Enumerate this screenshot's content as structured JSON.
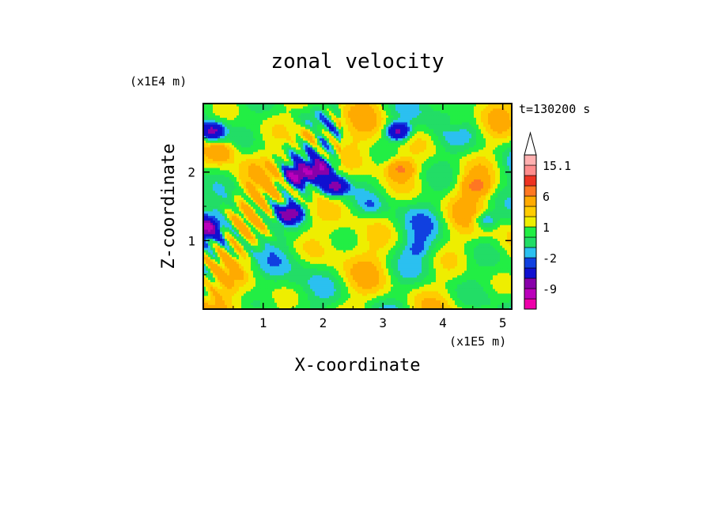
{
  "chart_data": {
    "type": "heatmap",
    "title": "zonal velocity",
    "xlabel": "X-coordinate",
    "ylabel": "Z-coordinate",
    "x_unit": "(x1E5 m)",
    "y_unit": "(x1E4 m)",
    "time_label": "t=130200 s",
    "xlim": [
      0,
      5.15
    ],
    "ylim": [
      0,
      3.0
    ],
    "x_ticks": [
      1,
      2,
      3,
      4,
      5
    ],
    "y_ticks": [
      1,
      2
    ],
    "colorbar": {
      "levels": [
        -15,
        -12,
        -9,
        -6,
        -3,
        -2,
        -1,
        0,
        1,
        2,
        3,
        6,
        9,
        12,
        15.1
      ],
      "tick_labels": [
        "15.1",
        "6",
        "1",
        "-2",
        "-9"
      ],
      "tick_values": [
        15.1,
        6,
        1,
        -2,
        -9
      ],
      "colors": [
        "#ee00aa",
        "#bb00bb",
        "#8800aa",
        "#1010d0",
        "#1040e0",
        "#2bc0f0",
        "#22dd66",
        "#22ee44",
        "#eeee00",
        "#ffcc00",
        "#ffaa00",
        "#ff7722",
        "#ee3322",
        "#ff8c8c",
        "#ffb0b0"
      ],
      "extend_top": true
    },
    "features": [
      {
        "x": 3.25,
        "z": 2.6,
        "u": -8
      },
      {
        "x": 3.3,
        "z": 2.05,
        "u": 5
      },
      {
        "x": 1.55,
        "z": 1.95,
        "u": -9
      },
      {
        "x": 1.95,
        "z": 2.05,
        "u": -8
      },
      {
        "x": 2.2,
        "z": 1.8,
        "u": -8
      },
      {
        "x": 1.45,
        "z": 1.4,
        "u": -8
      },
      {
        "x": 4.55,
        "z": 1.8,
        "u": 5
      },
      {
        "x": 4.7,
        "z": 1.3,
        "u": -4
      },
      {
        "x": 0.15,
        "z": 2.6,
        "u": -8
      },
      {
        "x": 0.3,
        "z": 2.3,
        "u": 3
      },
      {
        "x": 4.2,
        "z": 2.7,
        "u": 2
      },
      {
        "x": 1.8,
        "z": 2.55,
        "u": 4
      },
      {
        "x": 2.8,
        "z": 1.5,
        "u": -1.5
      },
      {
        "x": 3.6,
        "z": 0.9,
        "u": -1.5
      },
      {
        "x": 0.05,
        "z": 1.2,
        "u": -8
      }
    ]
  }
}
